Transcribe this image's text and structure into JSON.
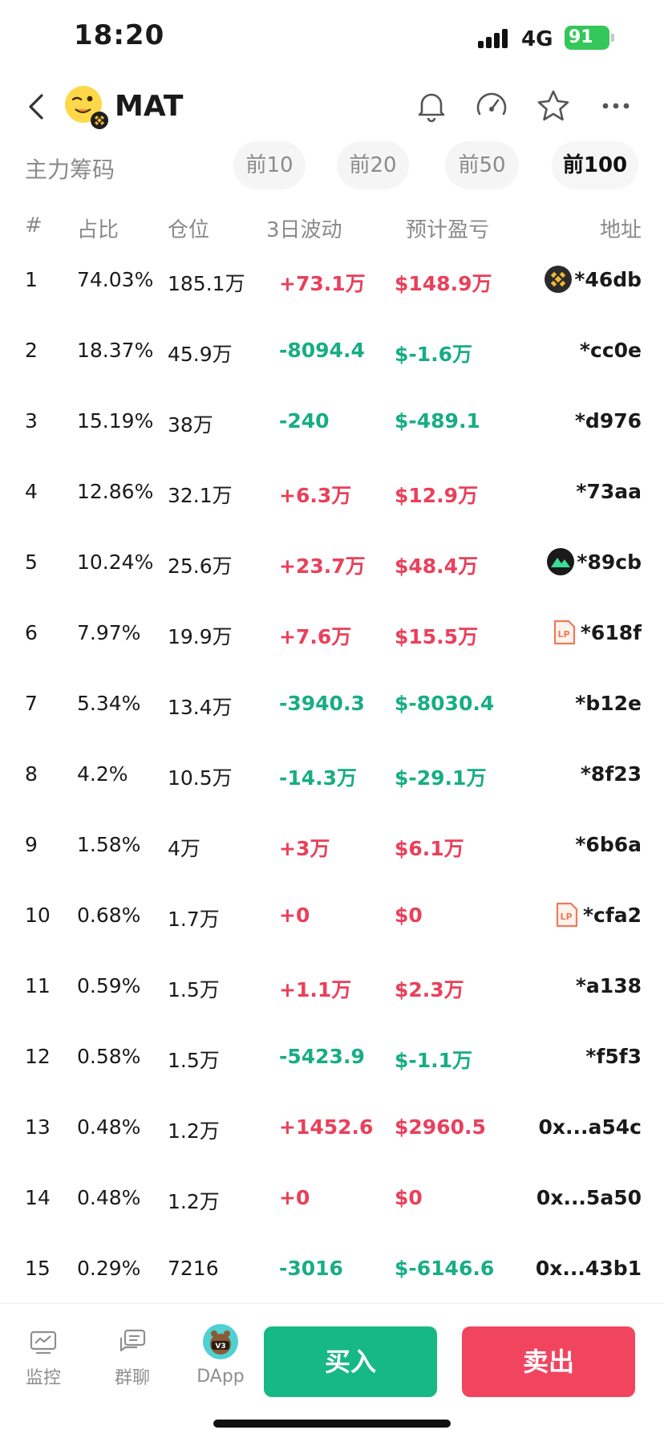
{
  "status": {
    "time": "18:20",
    "network": "4G",
    "battery": "91"
  },
  "header": {
    "title": "MAT"
  },
  "section": {
    "label": "主力筹码",
    "ranges": [
      "前10",
      "前20",
      "前50",
      "前100"
    ],
    "active_range": "前100"
  },
  "table": {
    "headers": {
      "index": "#",
      "share": "占比",
      "position": "仓位",
      "wave": "3日波动",
      "pnl": "预计盈亏",
      "address": "地址"
    },
    "rows": [
      {
        "index": "1",
        "share": "74.03%",
        "position": "185.1万",
        "wave": "+73.1万",
        "pnl": "$148.9万",
        "address": "*46db",
        "trend": "up",
        "badge": "binance-icon"
      },
      {
        "index": "2",
        "share": "18.37%",
        "position": "45.9万",
        "wave": "-8094.4",
        "pnl": "$-1.6万",
        "address": "*cc0e",
        "trend": "down",
        "badge": ""
      },
      {
        "index": "3",
        "share": "15.19%",
        "position": "38万",
        "wave": "-240",
        "pnl": "$-489.1",
        "address": "*d976",
        "trend": "down",
        "badge": ""
      },
      {
        "index": "4",
        "share": "12.86%",
        "position": "32.1万",
        "wave": "+6.3万",
        "pnl": "$12.9万",
        "address": "*73aa",
        "trend": "up",
        "badge": ""
      },
      {
        "index": "5",
        "share": "10.24%",
        "position": "25.6万",
        "wave": "+23.7万",
        "pnl": "$48.4万",
        "address": "*89cb",
        "trend": "up",
        "badge": "mountain-icon"
      },
      {
        "index": "6",
        "share": "7.97%",
        "position": "19.9万",
        "wave": "+7.6万",
        "pnl": "$15.5万",
        "address": "*618f",
        "trend": "up",
        "badge": "lp-icon"
      },
      {
        "index": "7",
        "share": "5.34%",
        "position": "13.4万",
        "wave": "-3940.3",
        "pnl": "$-8030.4",
        "address": "*b12e",
        "trend": "down",
        "badge": ""
      },
      {
        "index": "8",
        "share": "4.2%",
        "position": "10.5万",
        "wave": "-14.3万",
        "pnl": "$-29.1万",
        "address": "*8f23",
        "trend": "down",
        "badge": ""
      },
      {
        "index": "9",
        "share": "1.58%",
        "position": "4万",
        "wave": "+3万",
        "pnl": "$6.1万",
        "address": "*6b6a",
        "trend": "up",
        "badge": ""
      },
      {
        "index": "10",
        "share": "0.68%",
        "position": "1.7万",
        "wave": "+0",
        "pnl": "$0",
        "address": "*cfa2",
        "trend": "up",
        "badge": "lp-icon"
      },
      {
        "index": "11",
        "share": "0.59%",
        "position": "1.5万",
        "wave": "+1.1万",
        "pnl": "$2.3万",
        "address": "*a138",
        "trend": "up",
        "badge": ""
      },
      {
        "index": "12",
        "share": "0.58%",
        "position": "1.5万",
        "wave": "-5423.9",
        "pnl": "$-1.1万",
        "address": "*f5f3",
        "trend": "down",
        "badge": ""
      },
      {
        "index": "13",
        "share": "0.48%",
        "position": "1.2万",
        "wave": "+1452.6",
        "pnl": "$2960.5",
        "address": "0x...a54c",
        "trend": "up",
        "badge": ""
      },
      {
        "index": "14",
        "share": "0.48%",
        "position": "1.2万",
        "wave": "+0",
        "pnl": "$0",
        "address": "0x...5a50",
        "trend": "up",
        "badge": ""
      },
      {
        "index": "15",
        "share": "0.29%",
        "position": "7216",
        "wave": "-3016",
        "pnl": "$-6146.6",
        "address": "0x...43b1",
        "trend": "down",
        "badge": ""
      }
    ]
  },
  "bottom": {
    "monitor": "监控",
    "group_chat": "群聊",
    "dapp": "DApp",
    "dapp_badge": "V3",
    "buy": "买入",
    "sell": "卖出"
  },
  "colors": {
    "up": "#e9405b",
    "down": "#17ad85",
    "buy": "#16b884",
    "sell": "#f1455f",
    "battery": "#34c759"
  }
}
